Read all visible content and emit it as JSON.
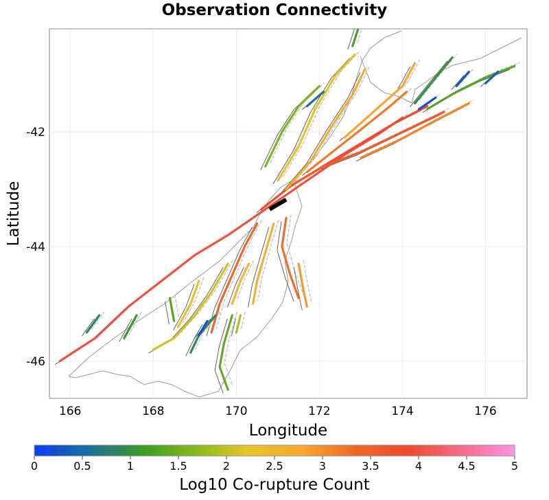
{
  "title": "Observation Connectivity",
  "x_axis": {
    "label": "Longitude",
    "ticks": [
      "166",
      "168",
      "170",
      "172",
      "174",
      "176"
    ],
    "values": [
      166,
      168,
      170,
      172,
      174,
      176
    ],
    "range": [
      165.5,
      177.0
    ]
  },
  "y_axis": {
    "label": "Latitude",
    "ticks": [
      "-42",
      "-44",
      "-46"
    ],
    "values": [
      -42,
      -44,
      -46
    ],
    "range": [
      -46.65,
      -40.2
    ]
  },
  "colorbar": {
    "label": "Log10 Co-rupture Count",
    "ticks": [
      "0",
      "0.5",
      "1",
      "1.5",
      "2",
      "2.5",
      "3",
      "3.5",
      "4",
      "4.5",
      "5"
    ],
    "range": [
      0,
      5
    ],
    "colors": [
      "#0a3cf0",
      "#1f6e9a",
      "#3a9a2a",
      "#86b81e",
      "#e8c42a",
      "#f7a830",
      "#ef6a28",
      "#ee4a2e",
      "#f46c8a",
      "#f894e8"
    ]
  },
  "highlighted_rupture": {
    "name": "black-source-segment",
    "lon": [
      170.8,
      171.2
    ],
    "lat": [
      -43.35,
      -43.18
    ]
  },
  "faults": [
    {
      "v": 4.0,
      "pts": [
        [
          165.75,
          -46.0
        ],
        [
          166.6,
          -45.6
        ],
        [
          167.4,
          -45.05
        ],
        [
          168.2,
          -44.6
        ],
        [
          169.0,
          -44.15
        ],
        [
          169.8,
          -43.8
        ],
        [
          170.4,
          -43.5
        ],
        [
          171.0,
          -43.2
        ],
        [
          171.8,
          -42.8
        ],
        [
          172.6,
          -42.4
        ],
        [
          173.4,
          -42.05
        ],
        [
          174.0,
          -41.75
        ]
      ]
    },
    {
      "v": 3.9,
      "pts": [
        [
          170.6,
          -43.35
        ],
        [
          171.3,
          -42.95
        ],
        [
          172.2,
          -42.55
        ],
        [
          173.0,
          -42.2
        ],
        [
          173.8,
          -41.85
        ],
        [
          174.6,
          -41.55
        ]
      ]
    },
    {
      "v": 3.6,
      "pts": [
        [
          171.4,
          -42.9
        ],
        [
          172.1,
          -42.6
        ],
        [
          173.0,
          -42.35
        ],
        [
          174.0,
          -42.0
        ],
        [
          175.0,
          -41.65
        ]
      ]
    },
    {
      "v": 3.2,
      "pts": [
        [
          171.7,
          -42.7
        ],
        [
          172.4,
          -42.3
        ],
        [
          173.1,
          -41.9
        ],
        [
          173.7,
          -41.55
        ],
        [
          174.1,
          -41.3
        ]
      ]
    },
    {
      "v": 2.7,
      "pts": [
        [
          171.2,
          -43.0
        ],
        [
          171.8,
          -42.5
        ],
        [
          172.3,
          -41.9
        ],
        [
          172.8,
          -41.35
        ],
        [
          173.1,
          -40.9
        ]
      ]
    },
    {
      "v": 2.2,
      "pts": [
        [
          171.0,
          -42.85
        ],
        [
          171.5,
          -42.25
        ],
        [
          171.9,
          -41.6
        ],
        [
          172.4,
          -41.0
        ],
        [
          172.85,
          -40.65
        ]
      ]
    },
    {
      "v": 1.6,
      "pts": [
        [
          170.7,
          -42.6
        ],
        [
          171.1,
          -42.0
        ],
        [
          171.5,
          -41.55
        ],
        [
          172.0,
          -41.2
        ]
      ]
    },
    {
      "v": 2.8,
      "pts": [
        [
          172.6,
          -42.1
        ],
        [
          173.3,
          -41.65
        ],
        [
          174.0,
          -41.2
        ],
        [
          174.3,
          -40.8
        ]
      ]
    },
    {
      "v": 3.1,
      "pts": [
        [
          173.0,
          -42.45
        ],
        [
          173.9,
          -42.15
        ],
        [
          174.8,
          -41.8
        ],
        [
          175.6,
          -41.5
        ]
      ]
    },
    {
      "v": 1.3,
      "pts": [
        [
          174.6,
          -41.6
        ],
        [
          175.3,
          -41.3
        ],
        [
          176.0,
          -41.05
        ],
        [
          176.7,
          -40.85
        ]
      ]
    },
    {
      "v": 1.0,
      "pts": [
        [
          174.3,
          -41.5
        ],
        [
          174.8,
          -41.05
        ],
        [
          175.2,
          -40.7
        ]
      ]
    },
    {
      "v": 0.3,
      "pts": [
        [
          175.3,
          -41.2
        ],
        [
          175.6,
          -40.95
        ]
      ]
    },
    {
      "v": 0.4,
      "pts": [
        [
          176.0,
          -41.15
        ],
        [
          176.3,
          -40.95
        ]
      ]
    },
    {
      "v": 0.2,
      "pts": [
        [
          174.4,
          -41.6
        ],
        [
          174.8,
          -41.4
        ]
      ]
    },
    {
      "v": 0.6,
      "pts": [
        [
          171.7,
          -41.55
        ],
        [
          172.1,
          -41.3
        ]
      ]
    },
    {
      "v": 1.2,
      "pts": [
        [
          172.8,
          -40.5
        ],
        [
          173.0,
          -40.05
        ]
      ]
    },
    {
      "v": 3.4,
      "pts": [
        [
          170.5,
          -43.6
        ],
        [
          170.2,
          -44.0
        ],
        [
          169.9,
          -44.5
        ],
        [
          169.6,
          -45.0
        ],
        [
          169.4,
          -45.5
        ]
      ]
    },
    {
      "v": 2.6,
      "pts": [
        [
          170.9,
          -43.6
        ],
        [
          170.7,
          -44.1
        ],
        [
          170.5,
          -44.6
        ],
        [
          170.4,
          -45.0
        ]
      ]
    },
    {
      "v": 3.3,
      "pts": [
        [
          171.2,
          -43.5
        ],
        [
          171.1,
          -44.0
        ],
        [
          171.3,
          -44.5
        ],
        [
          171.5,
          -44.9
        ]
      ]
    },
    {
      "v": 2.1,
      "pts": [
        [
          169.8,
          -44.3
        ],
        [
          169.4,
          -44.8
        ],
        [
          169.0,
          -45.2
        ],
        [
          168.5,
          -45.6
        ],
        [
          168.0,
          -45.8
        ]
      ]
    },
    {
      "v": 1.4,
      "pts": [
        [
          169.9,
          -45.2
        ],
        [
          169.7,
          -45.7
        ],
        [
          169.6,
          -46.1
        ],
        [
          169.8,
          -46.5
        ]
      ]
    },
    {
      "v": 0.9,
      "pts": [
        [
          169.5,
          -45.2
        ],
        [
          169.1,
          -45.55
        ],
        [
          168.9,
          -45.85
        ]
      ]
    },
    {
      "v": 0.2,
      "pts": [
        [
          169.3,
          -45.3
        ],
        [
          169.1,
          -45.55
        ]
      ]
    },
    {
      "v": 1.1,
      "pts": [
        [
          167.6,
          -45.2
        ],
        [
          167.3,
          -45.6
        ]
      ]
    },
    {
      "v": 1.3,
      "pts": [
        [
          168.4,
          -44.9
        ],
        [
          168.5,
          -45.3
        ]
      ]
    },
    {
      "v": 2.4,
      "pts": [
        [
          169.1,
          -44.6
        ],
        [
          168.9,
          -45.0
        ],
        [
          168.6,
          -45.4
        ]
      ]
    },
    {
      "v": 0.8,
      "pts": [
        [
          166.4,
          -45.5
        ],
        [
          166.7,
          -45.2
        ]
      ]
    },
    {
      "v": 2.9,
      "pts": [
        [
          171.5,
          -44.3
        ],
        [
          171.6,
          -44.7
        ],
        [
          171.7,
          -45.05
        ]
      ]
    },
    {
      "v": 1.9,
      "pts": [
        [
          170.1,
          -45.2
        ],
        [
          170.0,
          -45.5
        ]
      ]
    },
    {
      "v": 2.5,
      "pts": [
        [
          170.3,
          -44.3
        ],
        [
          170.1,
          -44.6
        ],
        [
          169.9,
          -45.0
        ]
      ]
    }
  ]
}
